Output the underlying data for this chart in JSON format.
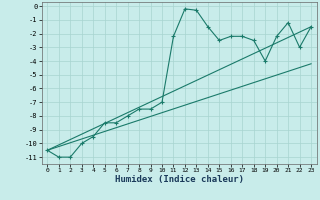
{
  "title": "",
  "xlabel": "Humidex (Indice chaleur)",
  "bg_color": "#c8ecea",
  "grid_color": "#a8d4d0",
  "line_color": "#1a7a6a",
  "xlim": [
    -0.5,
    23.5
  ],
  "ylim": [
    -11.5,
    0.3
  ],
  "yticks": [
    0,
    -1,
    -2,
    -3,
    -4,
    -5,
    -6,
    -7,
    -8,
    -9,
    -10,
    -11
  ],
  "xticks": [
    0,
    1,
    2,
    3,
    4,
    5,
    6,
    7,
    8,
    9,
    10,
    11,
    12,
    13,
    14,
    15,
    16,
    17,
    18,
    19,
    20,
    21,
    22,
    23
  ],
  "line1_x": [
    0,
    1,
    2,
    3,
    4,
    5,
    6,
    7,
    8,
    9,
    10,
    11,
    12,
    13,
    14,
    15,
    16,
    17,
    18,
    19,
    20,
    21,
    22,
    23
  ],
  "line1_y": [
    -10.5,
    -11.0,
    -11.0,
    -10.0,
    -9.5,
    -8.5,
    -8.5,
    -8.0,
    -7.5,
    -7.5,
    -7.0,
    -2.2,
    -0.2,
    -0.3,
    -1.5,
    -2.5,
    -2.2,
    -2.2,
    -2.5,
    -4.0,
    -2.2,
    -1.2,
    -3.0,
    -1.5
  ],
  "line2_x": [
    0,
    23
  ],
  "line2_y": [
    -10.5,
    -1.5
  ],
  "line3_x": [
    0,
    23
  ],
  "line3_y": [
    -10.5,
    -4.2
  ]
}
